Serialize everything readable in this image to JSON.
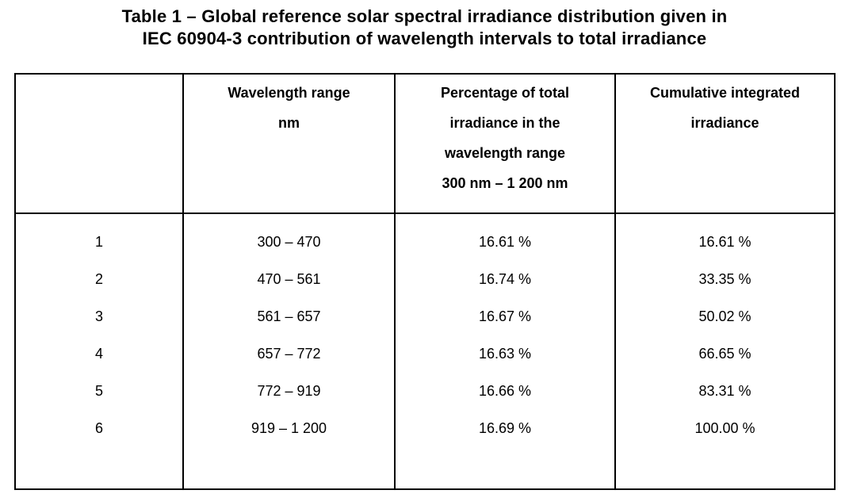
{
  "colors": {
    "background": "#ffffff",
    "text": "#000000",
    "border": "#000000"
  },
  "title": {
    "line1": "Table 1 – Global reference solar spectral irradiance distribution given in",
    "line2": "IEC 60904-3 contribution of wavelength intervals to total irradiance"
  },
  "table": {
    "columns": [
      {
        "header_lines": []
      },
      {
        "header_lines": [
          "Wavelength range",
          "nm"
        ]
      },
      {
        "header_lines": [
          "Percentage of total",
          "irradiance in the",
          "wavelength range",
          "300 nm – 1 200 nm"
        ]
      },
      {
        "header_lines": [
          "Cumulative integrated",
          "irradiance"
        ]
      }
    ],
    "rows": [
      {
        "num": "1",
        "range": "300 – 470",
        "pct": "16.61 %",
        "cum": "16.61 %"
      },
      {
        "num": "2",
        "range": "470 – 561",
        "pct": "16.74 %",
        "cum": "33.35 %"
      },
      {
        "num": "3",
        "range": "561 – 657",
        "pct": "16.67 %",
        "cum": "50.02 %"
      },
      {
        "num": "4",
        "range": "657 – 772",
        "pct": "16.63 %",
        "cum": "66.65 %"
      },
      {
        "num": "5",
        "range": "772 – 919",
        "pct": "16.66 %",
        "cum": "83.31 %"
      },
      {
        "num": "6",
        "range": "919 – 1 200",
        "pct": "16.69 %",
        "cum": "100.00 %"
      }
    ]
  }
}
